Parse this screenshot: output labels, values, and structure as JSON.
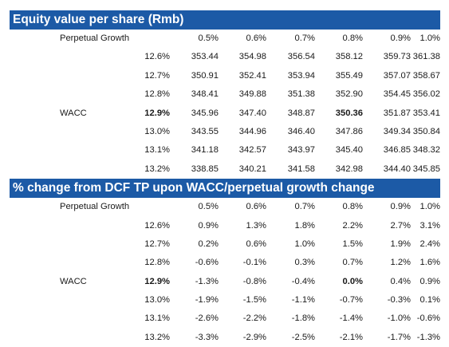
{
  "table1": {
    "title": "Equity value per share (Rmb)",
    "growth_label": "Perpetual Growth",
    "wacc_label": "WACC",
    "wacc_label_row": 3,
    "growth_headers": [
      "0.5%",
      "0.6%",
      "0.7%",
      "0.8%",
      "0.9%",
      "1.0%"
    ],
    "rows": [
      {
        "wacc": "12.6%",
        "values": [
          "353.44",
          "354.98",
          "356.54",
          "358.12",
          "359.73",
          "361.38"
        ]
      },
      {
        "wacc": "12.7%",
        "values": [
          "350.91",
          "352.41",
          "353.94",
          "355.49",
          "357.07",
          "358.67"
        ]
      },
      {
        "wacc": "12.8%",
        "values": [
          "348.41",
          "349.88",
          "351.38",
          "352.90",
          "354.45",
          "356.02"
        ]
      },
      {
        "wacc": "12.9%",
        "values": [
          "345.96",
          "347.40",
          "348.87",
          "350.36",
          "351.87",
          "353.41"
        ]
      },
      {
        "wacc": "13.0%",
        "values": [
          "343.55",
          "344.96",
          "346.40",
          "347.86",
          "349.34",
          "350.84"
        ]
      },
      {
        "wacc": "13.1%",
        "values": [
          "341.18",
          "342.57",
          "343.97",
          "345.40",
          "346.85",
          "348.32"
        ]
      },
      {
        "wacc": "13.2%",
        "values": [
          "338.85",
          "340.21",
          "341.58",
          "342.98",
          "344.40",
          "345.85"
        ]
      }
    ],
    "base_row": 3,
    "base_col": 3
  },
  "table2": {
    "title": "% change from DCF TP upon WACC/perpetual growth change",
    "growth_label": "Perpetual Growth",
    "wacc_label": "WACC",
    "wacc_label_row": 3,
    "growth_headers": [
      "0.5%",
      "0.6%",
      "0.7%",
      "0.8%",
      "0.9%",
      "1.0%"
    ],
    "rows": [
      {
        "wacc": "12.6%",
        "values": [
          "0.9%",
          "1.3%",
          "1.8%",
          "2.2%",
          "2.7%",
          "3.1%"
        ]
      },
      {
        "wacc": "12.7%",
        "values": [
          "0.2%",
          "0.6%",
          "1.0%",
          "1.5%",
          "1.9%",
          "2.4%"
        ]
      },
      {
        "wacc": "12.8%",
        "values": [
          "-0.6%",
          "-0.1%",
          "0.3%",
          "0.7%",
          "1.2%",
          "1.6%"
        ]
      },
      {
        "wacc": "12.9%",
        "values": [
          "-1.3%",
          "-0.8%",
          "-0.4%",
          "0.0%",
          "0.4%",
          "0.9%"
        ]
      },
      {
        "wacc": "13.0%",
        "values": [
          "-1.9%",
          "-1.5%",
          "-1.1%",
          "-0.7%",
          "-0.3%",
          "0.1%"
        ]
      },
      {
        "wacc": "13.1%",
        "values": [
          "-2.6%",
          "-2.2%",
          "-1.8%",
          "-1.4%",
          "-1.0%",
          "-0.6%"
        ]
      },
      {
        "wacc": "13.2%",
        "values": [
          "-3.3%",
          "-2.9%",
          "-2.5%",
          "-2.1%",
          "-1.7%",
          "-1.3%"
        ]
      }
    ],
    "base_row": 3,
    "base_col": 3
  },
  "colors": {
    "header_bg": "#1c5aa6",
    "header_text": "#ffffff",
    "body_text": "#1a1a1a"
  }
}
